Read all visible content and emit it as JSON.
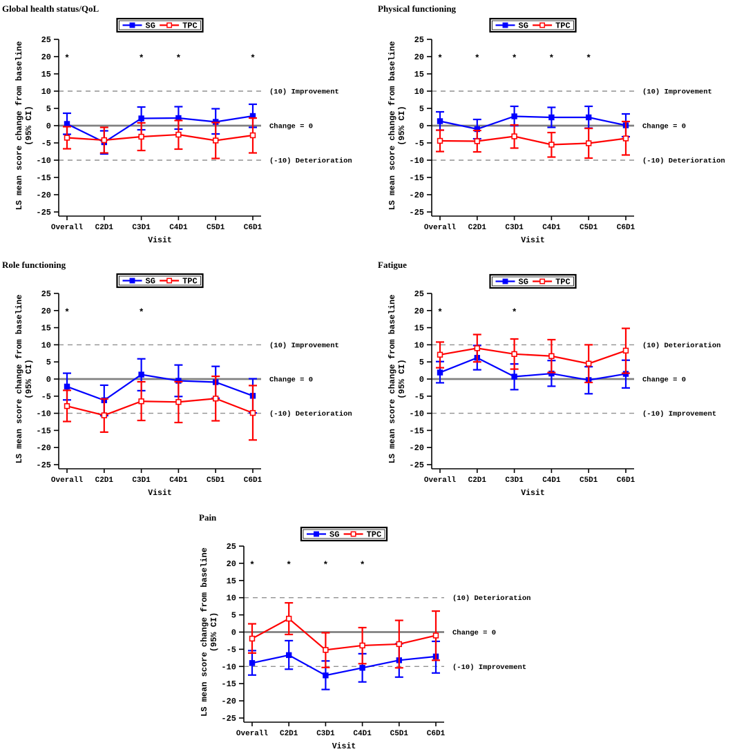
{
  "figure": {
    "background": "#ffffff",
    "colors": {
      "sg": "#0000ff",
      "tpc": "#ff0000",
      "zero_line": "#808080",
      "reference_line": "#909090",
      "axis": "#000000",
      "text": "#000000"
    },
    "legend": {
      "position": "top-center",
      "items": [
        {
          "label": "SG",
          "color": "#0000ff",
          "marker": "filled-square"
        },
        {
          "label": "TPC",
          "color": "#ff0000",
          "marker": "open-square"
        }
      ]
    }
  },
  "chart_data": [
    {
      "type": "line",
      "title": "Global health status/QoL",
      "xlabel": "Visit",
      "ylabel_lines": [
        "LS mean score change from baseline",
        "(95% CI)"
      ],
      "ylim": [
        -25,
        25
      ],
      "yticks": [
        25,
        20,
        15,
        10,
        5,
        0,
        -5,
        -10,
        -15,
        -20,
        -25
      ],
      "grid": false,
      "categories": [
        "Overall",
        "C2D1",
        "C3D1",
        "C4D1",
        "C5D1",
        "C6D1"
      ],
      "series": [
        {
          "name": "SG",
          "color": "#0000ff",
          "marker": "filled-square",
          "values": [
            0.5,
            -4.8,
            2.1,
            2.2,
            1.1,
            2.8
          ],
          "ci_low": [
            -2.5,
            -8.2,
            -1.2,
            -1.0,
            -2.4,
            -0.5
          ],
          "ci_high": [
            3.6,
            -1.5,
            5.4,
            5.5,
            4.9,
            6.2
          ]
        },
        {
          "name": "TPC",
          "color": "#ff0000",
          "marker": "open-square",
          "values": [
            -3.5,
            -4.2,
            -3.2,
            -2.6,
            -4.3,
            -2.8
          ],
          "ci_low": [
            -6.7,
            -7.9,
            -7.2,
            -6.8,
            -9.5,
            -7.9
          ],
          "ci_high": [
            -0.3,
            -0.5,
            0.8,
            1.5,
            0.9,
            2.2
          ]
        }
      ],
      "significance_asterisks": {
        "y": 20,
        "symbol": "*",
        "categories": [
          "Overall",
          "C3D1",
          "C4D1",
          "C6D1"
        ]
      },
      "reference_lines": [
        {
          "y": 10,
          "style": "dashed",
          "label": "(10) Improvement"
        },
        {
          "y": 0,
          "style": "solid",
          "label": "Change = 0"
        },
        {
          "y": -10,
          "style": "dashed",
          "label": "(-10) Deterioration"
        }
      ]
    },
    {
      "type": "line",
      "title": "Physical functioning",
      "xlabel": "Visit",
      "ylabel_lines": [
        "LS mean score change from baseline",
        "(95% CI)"
      ],
      "ylim": [
        -25,
        25
      ],
      "yticks": [
        25,
        20,
        15,
        10,
        5,
        0,
        -5,
        -10,
        -15,
        -20,
        -25
      ],
      "grid": false,
      "categories": [
        "Overall",
        "C2D1",
        "C3D1",
        "C4D1",
        "C5D1",
        "C6D1"
      ],
      "series": [
        {
          "name": "SG",
          "color": "#0000ff",
          "marker": "filled-square",
          "values": [
            1.3,
            -1.0,
            2.7,
            2.4,
            2.4,
            0.1
          ],
          "ci_low": [
            -1.3,
            -3.8,
            0.0,
            -0.5,
            -0.7,
            -3.2
          ],
          "ci_high": [
            4.0,
            1.8,
            5.6,
            5.3,
            5.6,
            3.4
          ]
        },
        {
          "name": "TPC",
          "color": "#ff0000",
          "marker": "open-square",
          "values": [
            -4.4,
            -4.5,
            -3.1,
            -5.5,
            -5.1,
            -3.7
          ],
          "ci_low": [
            -7.5,
            -7.6,
            -6.5,
            -9.1,
            -9.4,
            -8.5
          ],
          "ci_high": [
            -1.3,
            -1.4,
            0.2,
            -2.0,
            -0.8,
            1.2
          ]
        }
      ],
      "significance_asterisks": {
        "y": 20,
        "symbol": "*",
        "categories": [
          "Overall",
          "C2D1",
          "C3D1",
          "C4D1",
          "C5D1"
        ]
      },
      "reference_lines": [
        {
          "y": 10,
          "style": "dashed",
          "label": "(10) Improvement"
        },
        {
          "y": 0,
          "style": "solid",
          "label": "Change = 0"
        },
        {
          "y": -10,
          "style": "dashed",
          "label": "(-10) Deterioration"
        }
      ]
    },
    {
      "type": "line",
      "title": "Role functioning",
      "xlabel": "Visit",
      "ylabel_lines": [
        "LS mean score change from baseline",
        "(95% CI)"
      ],
      "ylim": [
        -25,
        25
      ],
      "yticks": [
        25,
        20,
        15,
        10,
        5,
        0,
        -5,
        -10,
        -15,
        -20,
        -25
      ],
      "grid": false,
      "categories": [
        "Overall",
        "C2D1",
        "C3D1",
        "C4D1",
        "C5D1",
        "C6D1"
      ],
      "series": [
        {
          "name": "SG",
          "color": "#0000ff",
          "marker": "filled-square",
          "values": [
            -2.2,
            -6.2,
            1.3,
            -0.5,
            -0.9,
            -4.9
          ],
          "ci_low": [
            -6.1,
            -10.7,
            -3.4,
            -5.1,
            -5.6,
            -9.9
          ],
          "ci_high": [
            1.7,
            -1.8,
            5.9,
            4.1,
            3.7,
            0.1
          ]
        },
        {
          "name": "TPC",
          "color": "#ff0000",
          "marker": "open-square",
          "values": [
            -7.9,
            -10.6,
            -6.5,
            -6.7,
            -5.7,
            -9.9
          ],
          "ci_low": [
            -12.4,
            -15.5,
            -12.1,
            -12.7,
            -12.2,
            -17.8
          ],
          "ci_high": [
            -3.3,
            -5.8,
            -0.8,
            -0.8,
            0.8,
            -1.9
          ]
        }
      ],
      "significance_asterisks": {
        "y": 20,
        "symbol": "*",
        "categories": [
          "Overall",
          "C3D1"
        ]
      },
      "reference_lines": [
        {
          "y": 10,
          "style": "dashed",
          "label": "(10) Improvement"
        },
        {
          "y": 0,
          "style": "solid",
          "label": "Change = 0"
        },
        {
          "y": -10,
          "style": "dashed",
          "label": "(-10) Deterioration"
        }
      ]
    },
    {
      "type": "line",
      "title": "Fatigue",
      "xlabel": "Visit",
      "ylabel_lines": [
        "LS mean score change from baseline",
        "(95% CI)"
      ],
      "ylim": [
        -25,
        25
      ],
      "yticks": [
        25,
        20,
        15,
        10,
        5,
        0,
        -5,
        -10,
        -15,
        -20,
        -25
      ],
      "grid": false,
      "categories": [
        "Overall",
        "C2D1",
        "C3D1",
        "C4D1",
        "C5D1",
        "C6D1"
      ],
      "series": [
        {
          "name": "SG",
          "color": "#0000ff",
          "marker": "filled-square",
          "values": [
            1.9,
            6.2,
            0.7,
            1.6,
            -0.3,
            1.5
          ],
          "ci_low": [
            -1.1,
            2.7,
            -3.1,
            -2.1,
            -4.3,
            -2.6
          ],
          "ci_high": [
            5.1,
            9.8,
            4.4,
            5.4,
            3.6,
            5.5
          ]
        },
        {
          "name": "TPC",
          "color": "#ff0000",
          "marker": "open-square",
          "values": [
            7.1,
            9.0,
            7.3,
            6.7,
            4.5,
            8.3
          ],
          "ci_low": [
            3.3,
            5.0,
            2.9,
            1.9,
            -1.0,
            1.7
          ],
          "ci_high": [
            10.8,
            13.0,
            11.7,
            11.5,
            10.0,
            14.8
          ]
        }
      ],
      "significance_asterisks": {
        "y": 20,
        "symbol": "*",
        "categories": [
          "Overall",
          "C3D1"
        ]
      },
      "reference_lines": [
        {
          "y": 10,
          "style": "dashed",
          "label": "(10) Deterioration"
        },
        {
          "y": 0,
          "style": "solid",
          "label": "Change = 0"
        },
        {
          "y": -10,
          "style": "dashed",
          "label": "(-10) Improvement"
        }
      ]
    },
    {
      "type": "line",
      "title": "Pain",
      "xlabel": "Visit",
      "ylabel_lines": [
        "LS mean score change from baseline",
        "(95% CI)"
      ],
      "ylim": [
        -25,
        25
      ],
      "yticks": [
        25,
        20,
        15,
        10,
        5,
        0,
        -5,
        -10,
        -15,
        -20,
        -25
      ],
      "grid": false,
      "categories": [
        "Overall",
        "C2D1",
        "C3D1",
        "C4D1",
        "C5D1",
        "C6D1"
      ],
      "series": [
        {
          "name": "SG",
          "color": "#0000ff",
          "marker": "filled-square",
          "values": [
            -9.0,
            -6.7,
            -12.6,
            -10.4,
            -8.2,
            -7.1
          ],
          "ci_low": [
            -12.5,
            -10.8,
            -16.7,
            -14.5,
            -13.1,
            -11.9
          ],
          "ci_high": [
            -5.4,
            -2.5,
            -8.4,
            -6.3,
            -3.4,
            -2.7
          ]
        },
        {
          "name": "TPC",
          "color": "#ff0000",
          "marker": "open-square",
          "values": [
            -1.9,
            3.9,
            -5.2,
            -3.9,
            -3.5,
            -1.0
          ],
          "ci_low": [
            -6.1,
            -0.7,
            -10.3,
            -9.2,
            -10.4,
            -8.2
          ],
          "ci_high": [
            2.4,
            8.5,
            -0.2,
            1.3,
            3.4,
            6.1
          ]
        }
      ],
      "significance_asterisks": {
        "y": 20,
        "symbol": "*",
        "categories": [
          "Overall",
          "C2D1",
          "C3D1",
          "C4D1"
        ]
      },
      "reference_lines": [
        {
          "y": 10,
          "style": "dashed",
          "label": "(10) Deterioration"
        },
        {
          "y": 0,
          "style": "solid",
          "label": "Change = 0"
        },
        {
          "y": -10,
          "style": "dashed",
          "label": "(-10) Improvement"
        }
      ]
    }
  ]
}
